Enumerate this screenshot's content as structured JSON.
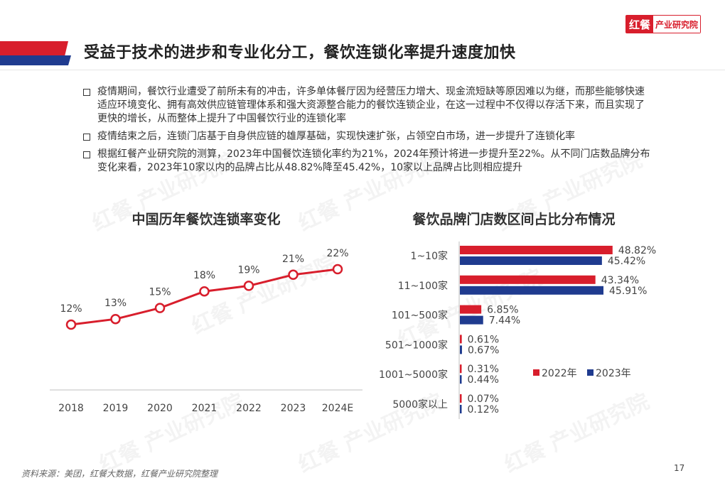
{
  "logo": {
    "mark": "红餐",
    "text": "产业研究院"
  },
  "watermark": "红餐 产业研究院",
  "title": "受益于技术的进步和专业化分工，餐饮连锁化率提升速度加快",
  "bullets": [
    "疫情期间，餐饮行业遭受了前所未有的冲击，许多单体餐厅因为经营压力增大、现金流短缺等原因难以为继，而那些能够快速适应环境变化、拥有高效供应链管理体系和强大资源整合能力的餐饮连锁企业，在这一过程中不仅得以存活下来，而且实现了更快的增长，从而整体上提升了中国餐饮行业的连锁化率",
    "疫情结束之后，连锁门店基于自身供应链的雄厚基础，实现快速扩张，占领空白市场，进一步提升了连锁化率",
    "根据红餐产业研究院的测算，2023年中国餐饮连锁化率约为21%，2024年预计将进一步提升至22%。从不同门店数品牌分布变化来看，2023年10家以内的品牌占比从48.82%降至45.42%，10家以上品牌占比则相应提升"
  ],
  "colors": {
    "red": "#d81e2c",
    "navy": "#1f3b8f",
    "axis": "#bfbfbf"
  },
  "chart_data": [
    {
      "type": "line",
      "title": "中国历年餐饮连锁率变化",
      "x": [
        "2018",
        "2019",
        "2020",
        "2021",
        "2022",
        "2023",
        "2024E"
      ],
      "series": [
        {
          "values": [
            12,
            13,
            15,
            18,
            19,
            21,
            22
          ],
          "labels": [
            "12%",
            "13%",
            "15%",
            "18%",
            "19%",
            "21%",
            "22%"
          ]
        }
      ]
    },
    {
      "type": "bar",
      "orientation": "horizontal",
      "title": "餐饮品牌门店数区间占比分布情况",
      "categories": [
        "1~10家",
        "11~100家",
        "101~500家",
        "501~1000家",
        "1001~5000家",
        "5000家以上"
      ],
      "series": [
        {
          "name": "2022年",
          "values": [
            48.82,
            43.34,
            6.85,
            0.61,
            0.31,
            0.07
          ],
          "labels": [
            "48.82%",
            "43.34%",
            "6.85%",
            "0.61%",
            "0.31%",
            "0.07%"
          ]
        },
        {
          "name": "2023年",
          "values": [
            45.42,
            45.91,
            7.44,
            0.67,
            0.44,
            0.12
          ],
          "labels": [
            "45.42%",
            "45.91%",
            "7.44%",
            "0.67%",
            "0.44%",
            "0.12%"
          ]
        }
      ],
      "legend_position": "right"
    }
  ],
  "source": "资料来源：美团，红餐大数据，红餐产业研究院整理",
  "page_number": "17"
}
